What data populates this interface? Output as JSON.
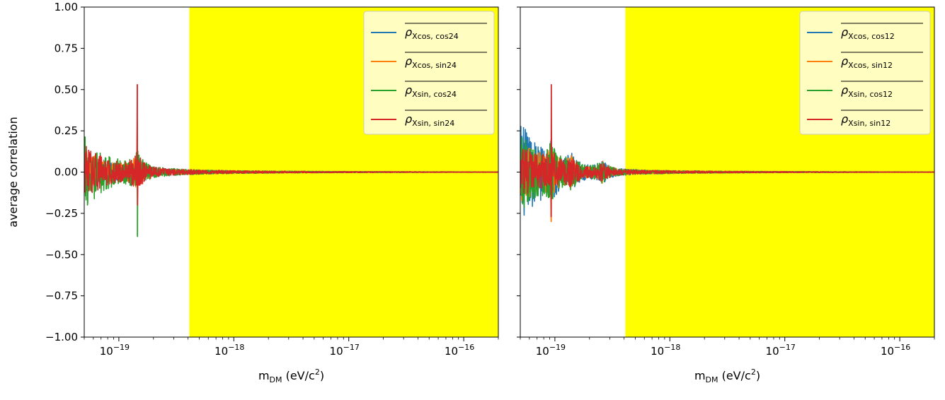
{
  "chart_data": [
    {
      "type": "line",
      "xscale": "log",
      "xlim": [
        5e-20,
        2e-16
      ],
      "ylim": [
        -1.0,
        1.0
      ],
      "xlabel": {
        "main": "m",
        "sub": "DM",
        "unit_pre": " (eV/c",
        "unit_sup": "2",
        "unit_post": ")"
      },
      "ylabel": "average correlation",
      "yticks": [
        "1.00",
        "0.75",
        "0.50",
        "0.25",
        "0.00",
        "−0.25",
        "−0.50",
        "−0.75",
        "−1.00"
      ],
      "ytick_values": [
        1.0,
        0.75,
        0.5,
        0.25,
        0.0,
        -0.25,
        -0.5,
        -0.75,
        -1.0
      ],
      "xticks": [
        {
          "value": 1e-19,
          "base": "10",
          "exp": "−19"
        },
        {
          "value": 1e-18,
          "base": "10",
          "exp": "−18"
        },
        {
          "value": 1e-17,
          "base": "10",
          "exp": "−17"
        },
        {
          "value": 1e-16,
          "base": "10",
          "exp": "−16"
        }
      ],
      "shaded_region": {
        "x_start": 4.1e-19,
        "x_end": 2e-16,
        "color": "#ffff00"
      },
      "legend_position": "top-right",
      "series": [
        {
          "name": "ρ",
          "sub": "Xcos, cos24",
          "color": "#1f77b4",
          "amp_near": 0.08,
          "spike_x": 1.45e-19,
          "spike_min": -0.12,
          "spike_max": 0.15
        },
        {
          "name": "ρ",
          "sub": "Xcos, sin24",
          "color": "#ff7f0e",
          "amp_near": 0.09,
          "spike_x": 1.45e-19,
          "spike_min": -0.15,
          "spike_max": 0.2
        },
        {
          "name": "ρ",
          "sub": "Xsin, cos24",
          "color": "#2ca02c",
          "amp_near": 0.18,
          "spike_x": 1.45e-19,
          "spike_min": -0.39,
          "spike_max": 0.3
        },
        {
          "name": "ρ",
          "sub": "Xsin, sin24",
          "color": "#d62728",
          "amp_near": 0.12,
          "spike_x": 1.45e-19,
          "spike_min": -0.2,
          "spike_max": 0.53
        }
      ]
    },
    {
      "type": "line",
      "xscale": "log",
      "xlim": [
        5e-20,
        2e-16
      ],
      "ylim": [
        -1.0,
        1.0
      ],
      "xlabel": {
        "main": "m",
        "sub": "DM",
        "unit_pre": " (eV/c",
        "unit_sup": "2",
        "unit_post": ")"
      },
      "ylabel": "",
      "yticks": [],
      "ytick_values": [
        1.0,
        0.75,
        0.5,
        0.25,
        0.0,
        -0.25,
        -0.5,
        -0.75,
        -1.0
      ],
      "xticks": [
        {
          "value": 1e-19,
          "base": "10",
          "exp": "−19"
        },
        {
          "value": 1e-18,
          "base": "10",
          "exp": "−18"
        },
        {
          "value": 1e-17,
          "base": "10",
          "exp": "−17"
        },
        {
          "value": 1e-16,
          "base": "10",
          "exp": "−16"
        }
      ],
      "shaded_region": {
        "x_start": 4.1e-19,
        "x_end": 2e-16,
        "color": "#ffff00"
      },
      "legend_position": "top-right",
      "series": [
        {
          "name": "ρ",
          "sub": "Xcos, cos12",
          "color": "#1f77b4",
          "amp_near": 0.27,
          "spike_x": 9.3e-20,
          "spike_min": -0.15,
          "spike_max": 0.25
        },
        {
          "name": "ρ",
          "sub": "Xcos, sin12",
          "color": "#ff7f0e",
          "amp_near": 0.15,
          "spike_x": 9.3e-20,
          "spike_min": -0.3,
          "spike_max": 0.2
        },
        {
          "name": "ρ",
          "sub": "Xsin, cos12",
          "color": "#2ca02c",
          "amp_near": 0.22,
          "spike_x": 9.3e-20,
          "spike_min": -0.15,
          "spike_max": 0.2
        },
        {
          "name": "ρ",
          "sub": "Xsin, sin12",
          "color": "#d62728",
          "amp_near": 0.12,
          "spike_x": 9.3e-20,
          "spike_min": -0.27,
          "spike_max": 0.53
        }
      ]
    }
  ]
}
